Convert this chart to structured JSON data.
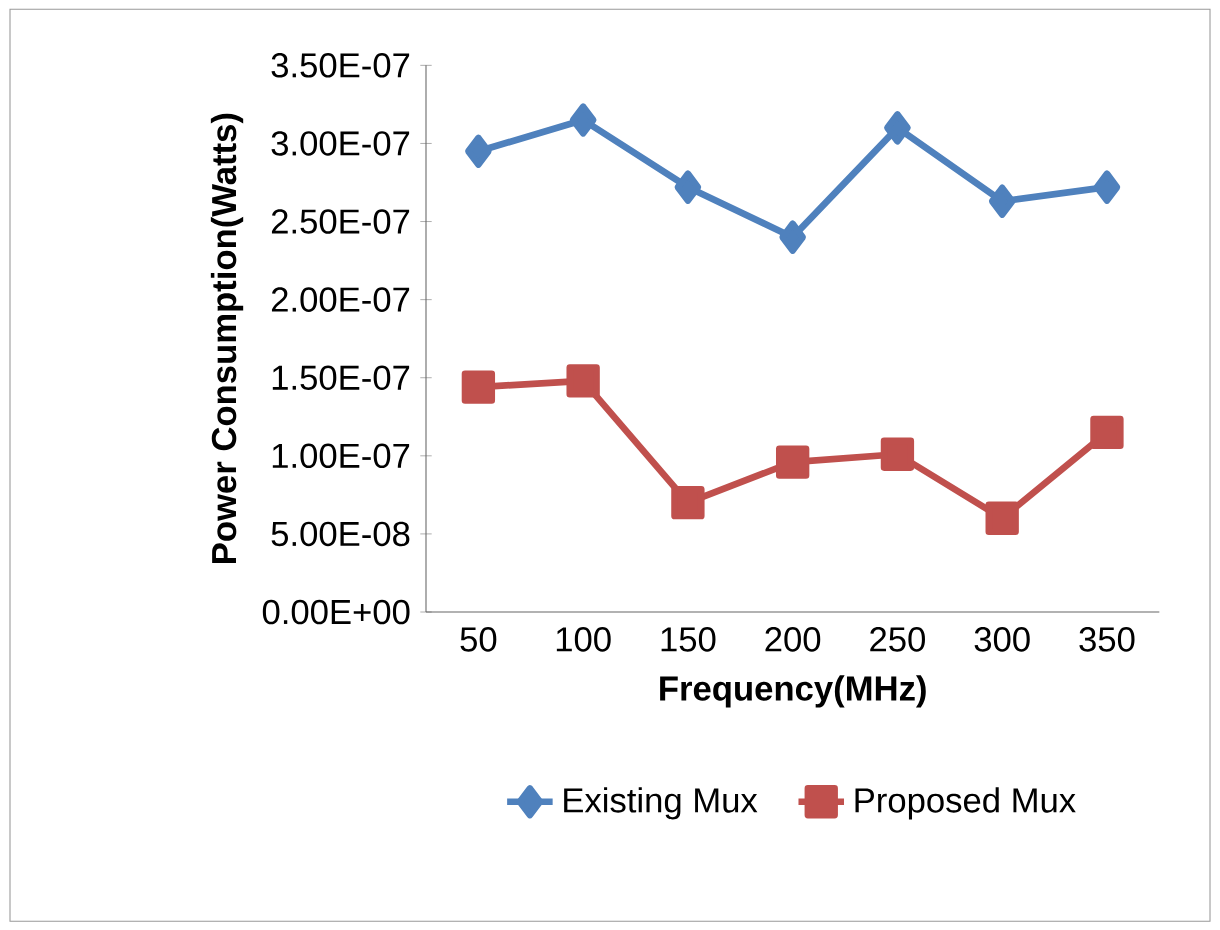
{
  "chart_data": {
    "type": "line",
    "xlabel": "Frequency(MHz)",
    "ylabel": "Power Consumption(Watts)",
    "categories": [
      "50",
      "100",
      "150",
      "200",
      "250",
      "300",
      "350"
    ],
    "series": [
      {
        "name": "Existing Mux",
        "color": "#4f81bd",
        "marker": "diamond",
        "values": [
          2.95e-07,
          3.15e-07,
          2.72e-07,
          2.4e-07,
          3.1e-07,
          2.63e-07,
          2.72e-07
        ]
      },
      {
        "name": "Proposed Mux",
        "color": "#c0504d",
        "marker": "square",
        "values": [
          1.44e-07,
          1.48e-07,
          7e-08,
          9.6e-08,
          1.01e-07,
          6e-08,
          1.15e-07
        ]
      }
    ],
    "ylim": [
      0,
      3.5e-07
    ],
    "yticks": [
      {
        "value": 0,
        "label": "0.00E+00"
      },
      {
        "value": 5e-08,
        "label": "5.00E-08"
      },
      {
        "value": 1e-07,
        "label": "1.00E-07"
      },
      {
        "value": 1.5e-07,
        "label": "1.50E-07"
      },
      {
        "value": 2e-07,
        "label": "2.00E-07"
      },
      {
        "value": 2.5e-07,
        "label": "2.50E-07"
      },
      {
        "value": 3e-07,
        "label": "3.00E-07"
      },
      {
        "value": 3.5e-07,
        "label": "3.50E-07"
      }
    ],
    "grid": false,
    "legend": "bottom",
    "line_style": "solid"
  }
}
